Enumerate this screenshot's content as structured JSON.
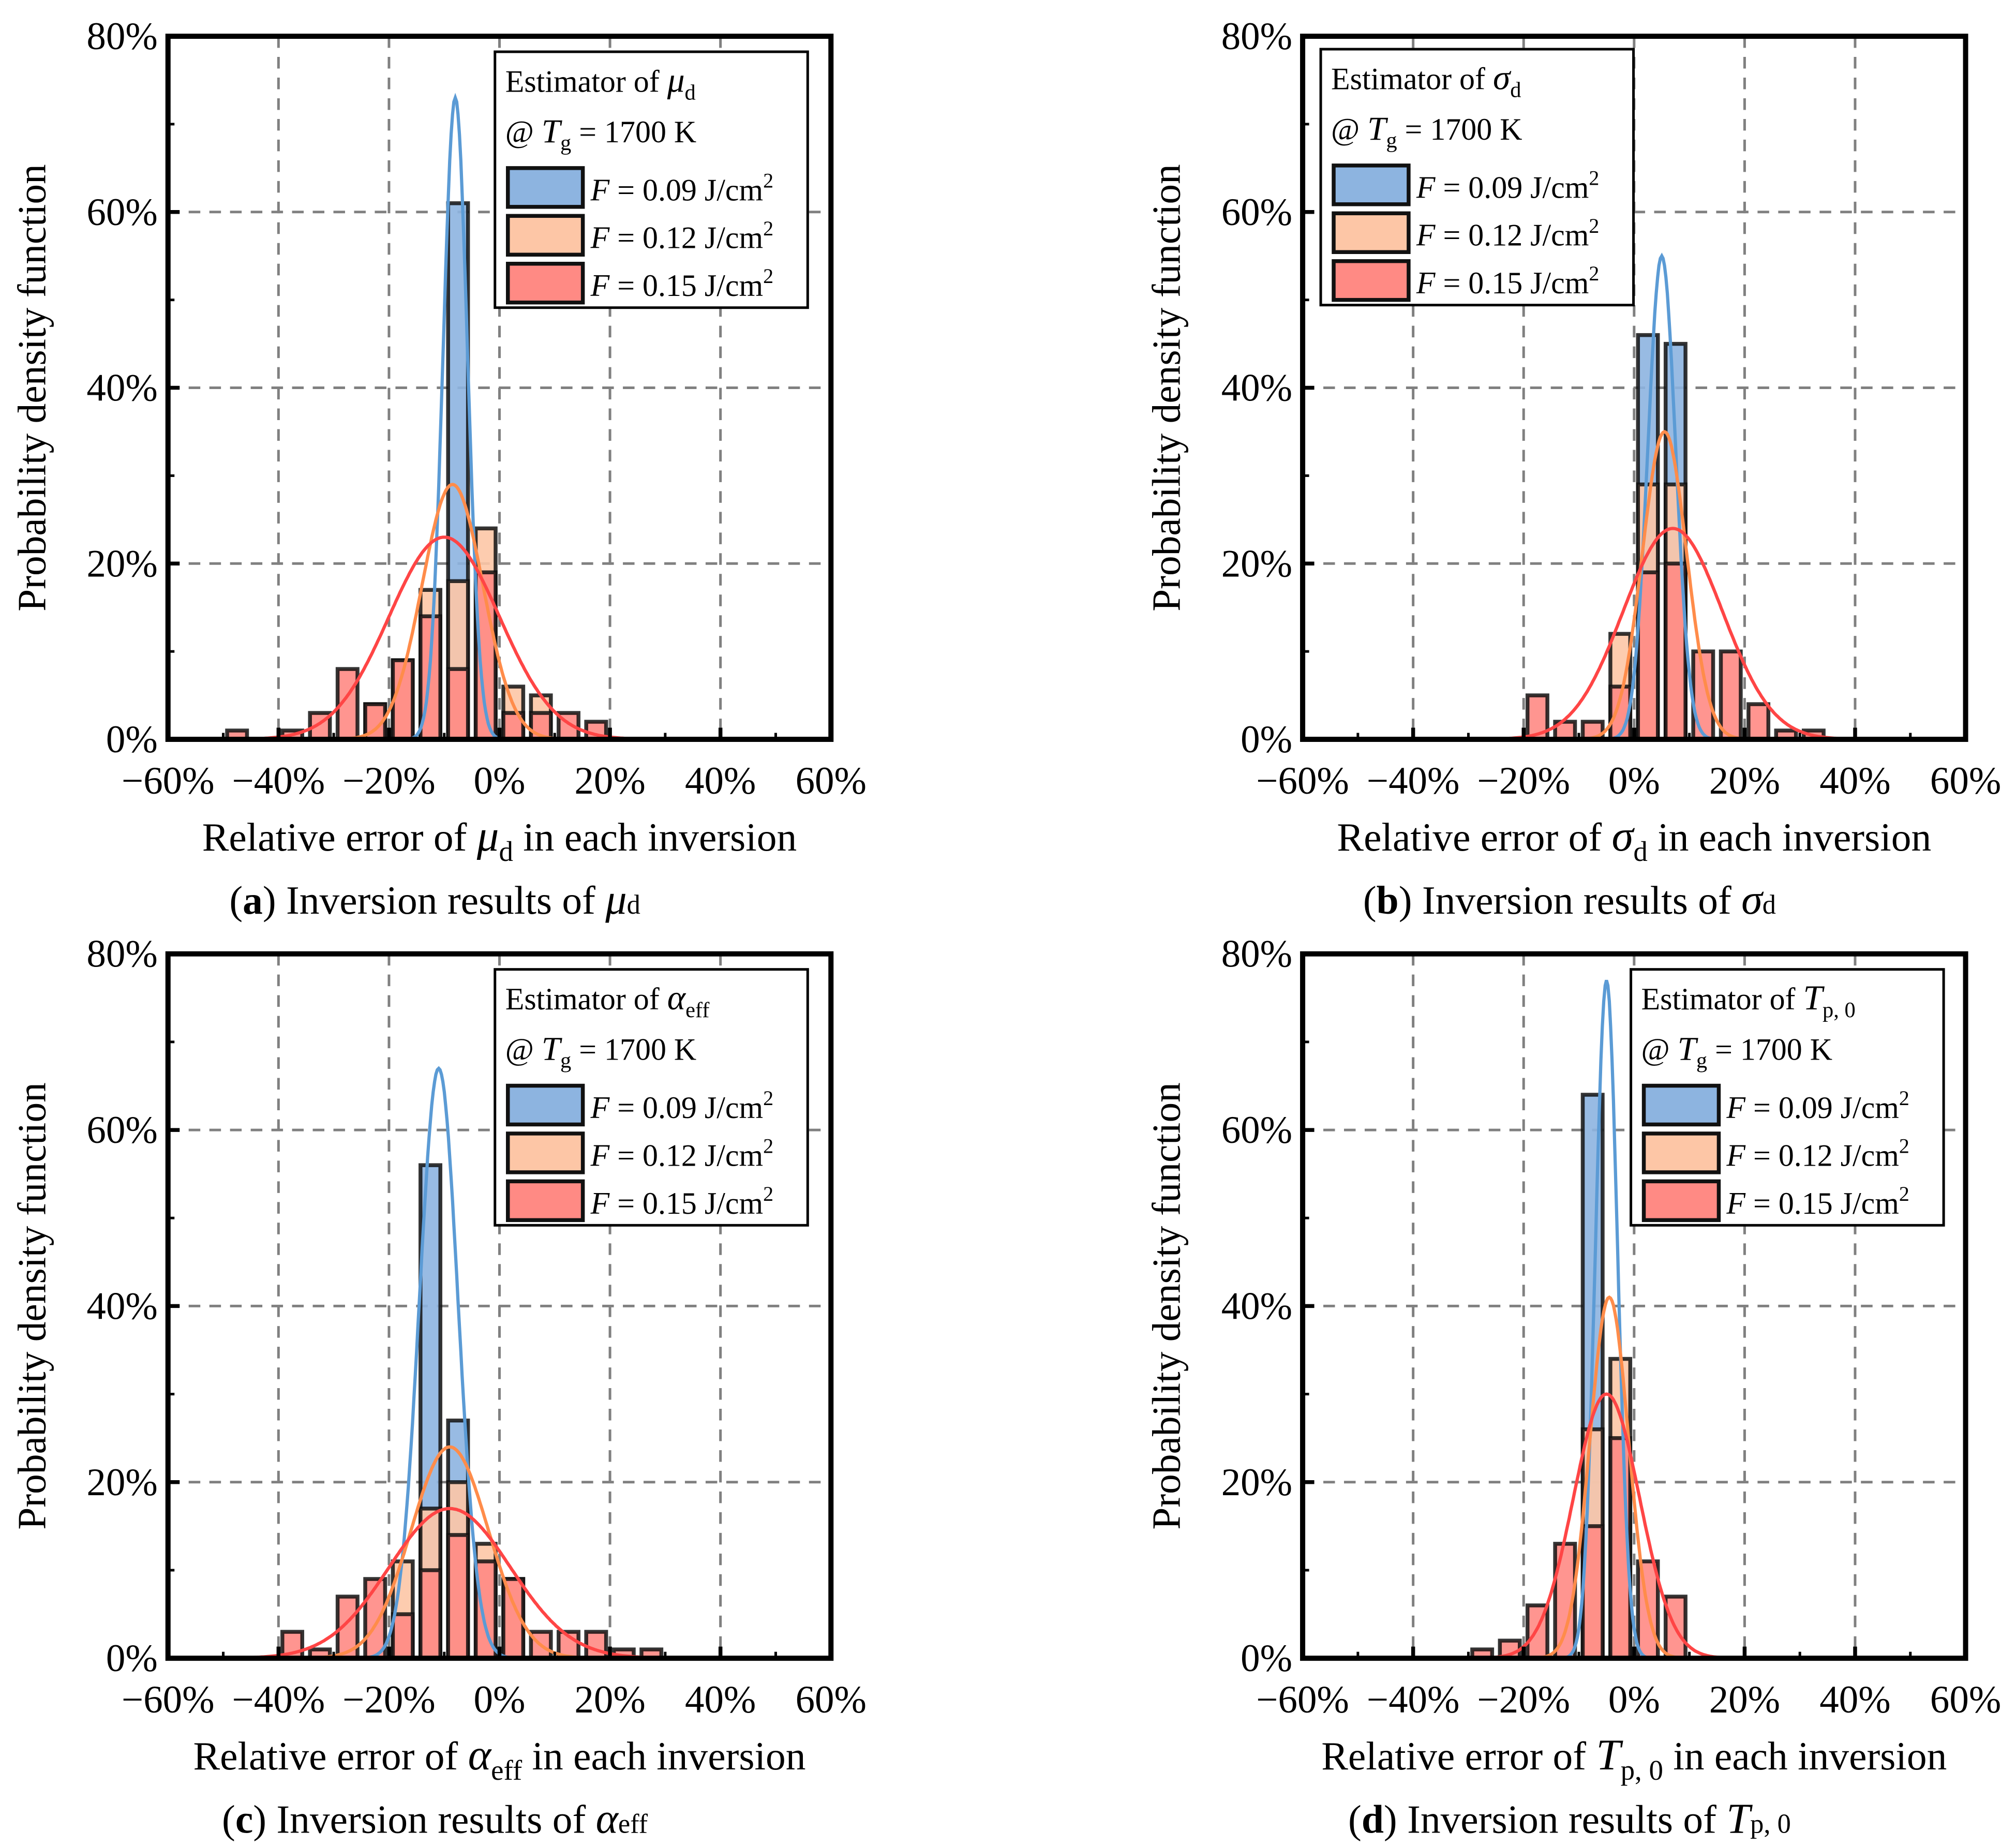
{
  "colors": {
    "blue_fill": "#8db4e0",
    "orange_fill": "#fdc6a6",
    "red_fill": "#ff8a84",
    "blue_line": "#5b9bd5",
    "orange_line": "#ff8c4a",
    "red_line": "#ff4545"
  },
  "common": {
    "ylabel": "Probability density function",
    "legend_line2": {
      "pre": "@ ",
      "sym": "T",
      "sub": "g",
      "post": " = 1700 K"
    },
    "legend_entries": [
      {
        "sym": "F",
        "text": " = 0.09 J/cm",
        "sup": "2"
      },
      {
        "sym": "F",
        "text": " = 0.12 J/cm",
        "sup": "2"
      },
      {
        "sym": "F",
        "text": " = 0.15 J/cm",
        "sup": "2"
      }
    ],
    "xticks": [
      "−60%",
      "−40%",
      "−20%",
      "0%",
      "20%",
      "40%",
      "60%"
    ],
    "yticks": [
      "0%",
      "20%",
      "40%",
      "60%",
      "80%"
    ]
  },
  "chart_data": [
    {
      "type": "bar",
      "panel": "a",
      "legend_title": {
        "pre": "Estimator of ",
        "sym": "μ",
        "sub": "d"
      },
      "xlabel": {
        "pre": "Relative error of ",
        "sym": "μ",
        "sub": "d",
        "post": " in each inversion"
      },
      "caption": {
        "letter": "a",
        "pre": " Inversion results of ",
        "sym": "μ",
        "sub": "d"
      },
      "xlim": [
        -60,
        60
      ],
      "ylim": [
        0,
        80
      ],
      "bin_width": 5,
      "series": [
        {
          "name": "F = 0.09 J/cm2",
          "bins": [
            -7.5
          ],
          "values": [
            61
          ],
          "fit": {
            "mean": -8,
            "sd": 2.2,
            "peak": 73
          }
        },
        {
          "name": "F = 0.12 J/cm2",
          "bins": [
            -22.5,
            -17.5,
            -12.5,
            -7.5,
            -2.5,
            2.5,
            7.5
          ],
          "values": [
            4,
            9,
            17,
            18,
            24,
            6,
            5
          ],
          "fit": {
            "mean": -8.5,
            "sd": 5.5,
            "peak": 29
          }
        },
        {
          "name": "F = 0.15 J/cm2",
          "bins": [
            -47.5,
            -37.5,
            -32.5,
            -27.5,
            -22.5,
            -17.5,
            -12.5,
            -7.5,
            -2.5,
            2.5,
            7.5,
            12.5,
            17.5
          ],
          "values": [
            1,
            1,
            3,
            8,
            4,
            9,
            14,
            8,
            19,
            3,
            3,
            3,
            2
          ],
          "fit": {
            "mean": -10,
            "sd": 10,
            "peak": 23
          }
        }
      ]
    },
    {
      "type": "bar",
      "panel": "b",
      "legend_title": {
        "pre": "Estimator of ",
        "sym": "σ",
        "sub": "d"
      },
      "xlabel": {
        "pre": "Relative error of ",
        "sym": "σ",
        "sub": "d",
        "post": " in each inversion"
      },
      "caption": {
        "letter": "b",
        "pre": " Inversion results of ",
        "sym": "σ",
        "sub": "d"
      },
      "xlim": [
        -60,
        60
      ],
      "ylim": [
        0,
        80
      ],
      "bin_width": 5,
      "series": [
        {
          "name": "F = 0.09 J/cm2",
          "bins": [
            2.5,
            7.5
          ],
          "values": [
            46,
            45
          ],
          "fit": {
            "mean": 5,
            "sd": 2.5,
            "peak": 55
          }
        },
        {
          "name": "F = 0.12 J/cm2",
          "bins": [
            -2.5,
            2.5,
            7.5
          ],
          "values": [
            12,
            29,
            29
          ],
          "fit": {
            "mean": 5.5,
            "sd": 4,
            "peak": 35
          }
        },
        {
          "name": "F = 0.15 J/cm2",
          "bins": [
            -17.5,
            -12.5,
            -7.5,
            -2.5,
            2.5,
            7.5,
            12.5,
            17.5,
            22.5,
            27.5,
            32.5
          ],
          "values": [
            5,
            2,
            2,
            6,
            19,
            20,
            10,
            10,
            4,
            1,
            1
          ],
          "fit": {
            "mean": 7,
            "sd": 9,
            "peak": 24
          }
        }
      ]
    },
    {
      "type": "bar",
      "panel": "c",
      "legend_title": {
        "pre": "Estimator of ",
        "sym": "α",
        "sub": "eff"
      },
      "xlabel": {
        "pre": "Relative error of ",
        "sym": "α",
        "sub": "eff",
        "post": " in each inversion"
      },
      "caption": {
        "letter": "c",
        "pre": " Inversion results of ",
        "sym": "α",
        "sub": "eff"
      },
      "xlim": [
        -60,
        60
      ],
      "ylim": [
        0,
        80
      ],
      "bin_width": 5,
      "series": [
        {
          "name": "F = 0.09 J/cm2",
          "bins": [
            -12.5,
            -7.5
          ],
          "values": [
            56,
            27
          ],
          "fit": {
            "mean": -11,
            "sd": 3.5,
            "peak": 67
          }
        },
        {
          "name": "F = 0.12 J/cm2",
          "bins": [
            -17.5,
            -12.5,
            -7.5,
            -2.5,
            2.5
          ],
          "values": [
            11,
            17,
            20,
            13,
            9
          ],
          "fit": {
            "mean": -9,
            "sd": 7,
            "peak": 24
          }
        },
        {
          "name": "F = 0.15 J/cm2",
          "bins": [
            -37.5,
            -32.5,
            -27.5,
            -22.5,
            -17.5,
            -12.5,
            -7.5,
            -2.5,
            2.5,
            7.5,
            12.5,
            17.5,
            22.5,
            27.5
          ],
          "values": [
            3,
            1,
            7,
            9,
            5,
            10,
            14,
            11,
            9,
            3,
            3,
            3,
            1,
            1
          ],
          "fit": {
            "mean": -9,
            "sd": 11,
            "peak": 17
          }
        }
      ]
    },
    {
      "type": "bar",
      "panel": "d",
      "legend_title": {
        "pre": "Estimator of ",
        "sym": "T",
        "sub": "p, 0"
      },
      "xlabel": {
        "pre": "Relative error of ",
        "sym": "T",
        "sub": "p, 0",
        "post": " in each inversion"
      },
      "caption": {
        "letter": "d",
        "pre": " Inversion results of ",
        "sym": "T",
        "sub": "p, 0"
      },
      "xlim": [
        -60,
        60
      ],
      "ylim": [
        0,
        80
      ],
      "bin_width": 5,
      "series": [
        {
          "name": "F = 0.09 J/cm2",
          "bins": [
            -7.5
          ],
          "values": [
            64
          ],
          "fit": {
            "mean": -5,
            "sd": 2,
            "peak": 77
          }
        },
        {
          "name": "F = 0.12 J/cm2",
          "bins": [
            -7.5,
            -2.5
          ],
          "values": [
            26,
            34
          ],
          "fit": {
            "mean": -4.5,
            "sd": 3.5,
            "peak": 41
          }
        },
        {
          "name": "F = 0.15 J/cm2",
          "bins": [
            -27.5,
            -22.5,
            -17.5,
            -12.5,
            -7.5,
            -2.5,
            2.5,
            7.5
          ],
          "values": [
            1,
            2,
            6,
            13,
            15,
            25,
            11,
            7
          ],
          "fit": {
            "mean": -5,
            "sd": 6,
            "peak": 30
          }
        }
      ]
    }
  ]
}
